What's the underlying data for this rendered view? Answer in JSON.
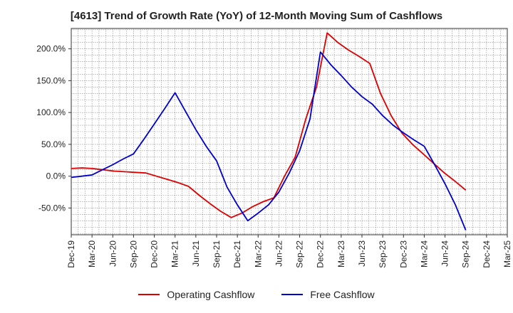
{
  "chart_data": {
    "type": "line",
    "title": "[4613]  Trend of Growth Rate (YoY) of 12-Month Moving Sum of Cashflows",
    "xlabel": "",
    "ylabel": "",
    "ylim": [
      -92,
      232
    ],
    "y_ticks": [
      200,
      150,
      100,
      50,
      0,
      -50
    ],
    "y_tick_labels": [
      "200.0%",
      "150.0%",
      "100.0%",
      "50.0%",
      "0.0%",
      "-50.0%"
    ],
    "x_tick_labels": [
      "Dec-19",
      "Mar-20",
      "Jun-20",
      "Sep-20",
      "Dec-20",
      "Mar-21",
      "Jun-21",
      "Sep-21",
      "Dec-21",
      "Mar-22",
      "Jun-22",
      "Sep-22",
      "Dec-22",
      "Mar-23",
      "Jun-23",
      "Sep-23",
      "Dec-23",
      "Mar-24",
      "Jun-24",
      "Sep-24",
      "Dec-24",
      "Mar-25"
    ],
    "grid": true,
    "series": [
      {
        "name": "Operating Cashflow",
        "color": "#dd0000",
        "values": [
          12,
          13,
          12,
          10,
          8,
          7,
          6,
          5,
          0,
          -5,
          -10,
          -16,
          -30,
          -43,
          -55,
          -65,
          -58,
          -48,
          -40,
          -34,
          0,
          30,
          90,
          140,
          225,
          210,
          198,
          188,
          177,
          130,
          95,
          68,
          50,
          35,
          20,
          5,
          -8,
          -22
        ]
      },
      {
        "name": "Free Cashflow",
        "color": "#0000cc",
        "values": [
          -2,
          0,
          2,
          10,
          18,
          27,
          35,
          58,
          82,
          106,
          131,
          102,
          73,
          47,
          24,
          -17,
          -45,
          -70,
          -58,
          -45,
          -25,
          5,
          40,
          90,
          195,
          175,
          158,
          140,
          125,
          113,
          95,
          80,
          68,
          57,
          47,
          18,
          -12,
          -45,
          -85
        ]
      }
    ],
    "series_start_index": [
      0,
      0
    ],
    "legend": "bottom"
  }
}
